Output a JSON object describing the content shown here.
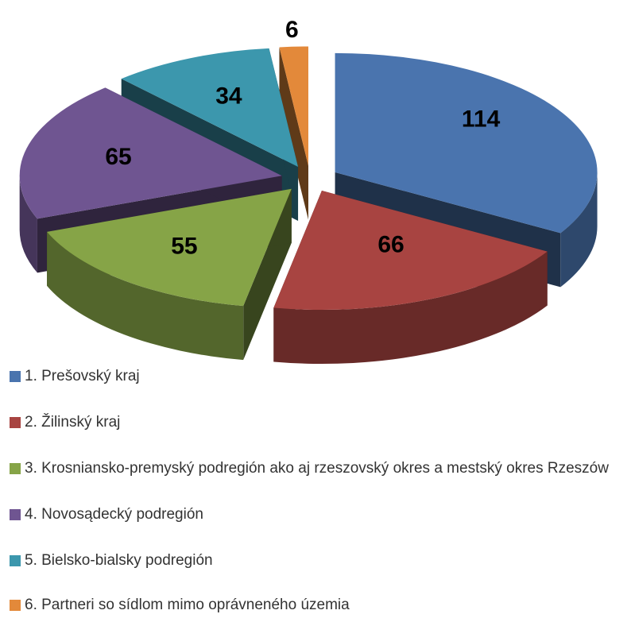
{
  "chart_data": {
    "type": "pie",
    "categories": [
      "1. Prešovský kraj",
      "2. Žilinský kraj",
      "3. Krosniansko-premyský podregión ako aj rzeszovský okres a mestský okres Rzeszów",
      "4. Novosądecký podregión",
      "5. Bielsko-bialsky podregión",
      "6. Partneri so sídlom mimo oprávneného územia"
    ],
    "values": [
      114,
      66,
      55,
      65,
      34,
      6
    ],
    "colors": [
      "#4a74ae",
      "#a84441",
      "#86a447",
      "#6f5591",
      "#3c97ad",
      "#e3893a"
    ],
    "legend": "bottom"
  }
}
